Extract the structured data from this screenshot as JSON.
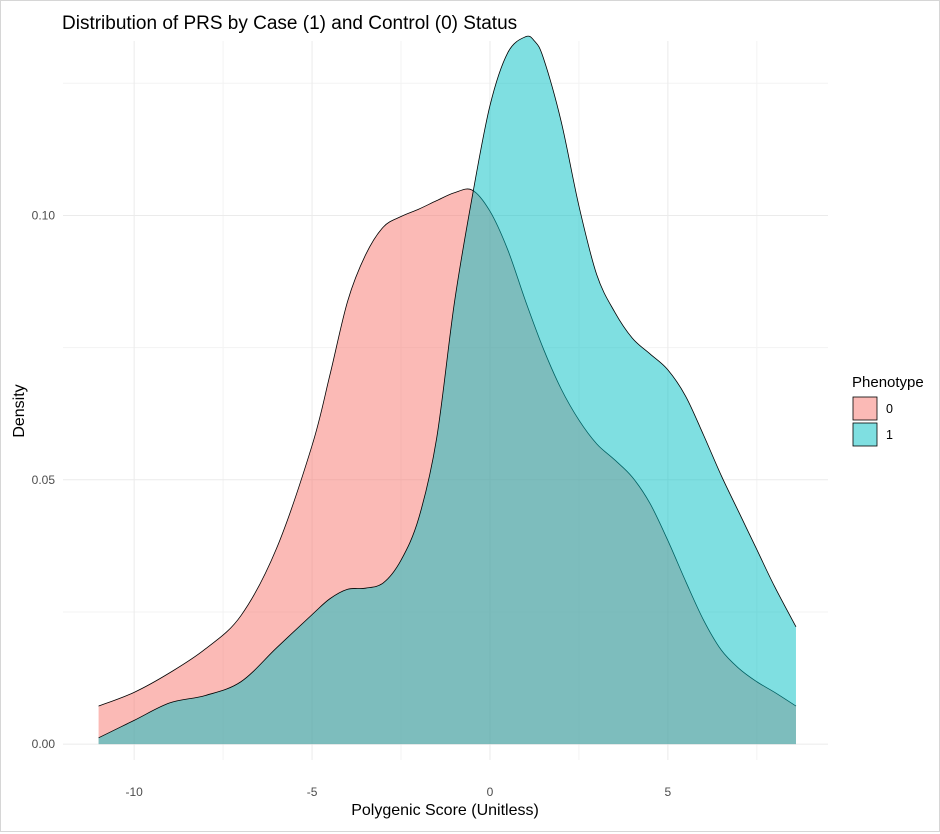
{
  "chart_data": {
    "type": "area",
    "title": "Distribution of PRS by Case (1) and Control (0) Status",
    "xlabel": "Polygenic Score (Unitless)",
    "ylabel": "Density",
    "xlim": [
      -12,
      9.5
    ],
    "ylim": [
      -0.003,
      0.133
    ],
    "x_ticks": [
      -10,
      -5,
      0,
      5
    ],
    "x_tick_labels": [
      "-10",
      "-5",
      "0",
      "5"
    ],
    "y_ticks": [
      0.0,
      0.05,
      0.1
    ],
    "y_tick_labels": [
      "0.00",
      "0.05",
      "0.10"
    ],
    "grid": true,
    "legend": {
      "title": "Phenotype",
      "position": "right"
    },
    "series": [
      {
        "name": "0",
        "color": "#F8766D",
        "x": [
          -11,
          -10,
          -9,
          -8,
          -7,
          -6,
          -5,
          -4.5,
          -4,
          -3.5,
          -3,
          -2.5,
          -2,
          -1.5,
          -1,
          -0.5,
          0,
          0.5,
          1,
          1.5,
          2,
          2.5,
          3,
          3.5,
          4,
          4.5,
          5,
          5.5,
          6,
          6.5,
          7,
          7.5,
          8,
          8.6
        ],
        "y": [
          0.0072,
          0.0098,
          0.0135,
          0.018,
          0.0243,
          0.037,
          0.0565,
          0.0698,
          0.0838,
          0.0925,
          0.0978,
          0.0998,
          0.1012,
          0.1028,
          0.1043,
          0.1048,
          0.1008,
          0.0935,
          0.0838,
          0.0748,
          0.0672,
          0.0613,
          0.0568,
          0.0538,
          0.0505,
          0.0455,
          0.0385,
          0.0308,
          0.0235,
          0.0178,
          0.0143,
          0.0118,
          0.0098,
          0.0072
        ]
      },
      {
        "name": "1",
        "color": "#00BFC4",
        "x": [
          -11,
          -10,
          -9,
          -8,
          -7,
          -6,
          -5,
          -4.5,
          -4,
          -3.5,
          -3,
          -2.5,
          -2,
          -1.5,
          -1,
          -0.5,
          0,
          0.5,
          1,
          1.25,
          1.5,
          2,
          2.5,
          3,
          3.5,
          4,
          4.5,
          5,
          5.5,
          6,
          6.5,
          7,
          7.5,
          8,
          8.6
        ],
        "y": [
          0.0012,
          0.0045,
          0.0078,
          0.0092,
          0.0118,
          0.0182,
          0.0245,
          0.0275,
          0.0293,
          0.0295,
          0.0305,
          0.0348,
          0.0428,
          0.0578,
          0.0835,
          0.1035,
          0.1208,
          0.1308,
          0.1338,
          0.133,
          0.1298,
          0.1178,
          0.1018,
          0.0888,
          0.0818,
          0.0768,
          0.0738,
          0.0708,
          0.0658,
          0.0585,
          0.0508,
          0.0438,
          0.0368,
          0.0298,
          0.0222
        ]
      }
    ]
  }
}
